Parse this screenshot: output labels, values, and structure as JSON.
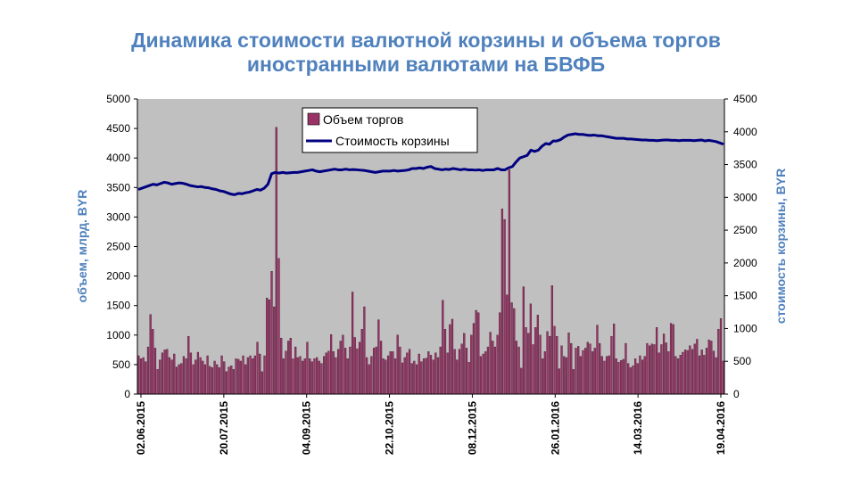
{
  "chart_data": {
    "type": "bar+line",
    "title": "Динамика стоимости валютной корзины и объема торгов иностранными валютами на БВФБ",
    "title_lines": [
      "Динамика стоимости валютной корзины и объема торгов",
      "иностранными валютами на БВФБ"
    ],
    "ylabel_left": "объем, млрд. BYR",
    "ylabel_right": "стоимость корзины, BYR",
    "ylim_left": [
      0,
      5000
    ],
    "ylim_right": [
      0,
      4500
    ],
    "yticks_left": [
      0,
      500,
      1000,
      1500,
      2000,
      2500,
      3000,
      3500,
      4000,
      4500,
      5000
    ],
    "yticks_right": [
      0,
      500,
      1000,
      1500,
      2000,
      2500,
      3000,
      3500,
      4000,
      4500
    ],
    "x_tick_labels": [
      "02.06.2015",
      "20.07.2015",
      "04.09.2015",
      "22.10.2015",
      "08.12.2015",
      "26.01.2016",
      "14.03.2016",
      "19.04.2016"
    ],
    "grid": false,
    "background": "#c0c0c0",
    "legend_position": "top-center",
    "series": [
      {
        "name": "Объем торгов",
        "type": "bar",
        "axis": "left",
        "color": "#993366",
        "values": [
          650,
          600,
          620,
          550,
          800,
          1350,
          1100,
          780,
          420,
          580,
          700,
          750,
          760,
          620,
          580,
          680,
          460,
          500,
          520,
          640,
          600,
          980,
          700,
          500,
          580,
          710,
          620,
          560,
          500,
          650,
          470,
          450,
          560,
          500,
          450,
          650,
          550,
          380,
          460,
          480,
          420,
          600,
          590,
          560,
          650,
          500,
          620,
          650,
          600,
          650,
          880,
          680,
          380,
          650,
          1630,
          1600,
          2080,
          1480,
          4520,
          2300,
          950,
          600,
          730,
          900,
          950,
          600,
          800,
          620,
          640,
          560,
          600,
          880,
          600,
          550,
          600,
          620,
          560,
          520,
          640,
          700,
          730,
          1010,
          720,
          620,
          760,
          900,
          1000,
          780,
          600,
          800,
          1730,
          960,
          770,
          880,
          1100,
          1480,
          620,
          500,
          640,
          780,
          800,
          1260,
          900,
          600,
          580,
          650,
          720,
          720,
          600,
          1000,
          800,
          530,
          620,
          700,
          760,
          520,
          560,
          500,
          680,
          550,
          600,
          610,
          720,
          660,
          580,
          700,
          620,
          800,
          1590,
          1100,
          700,
          1180,
          1270,
          760,
          580,
          760,
          850,
          1030,
          780,
          540,
          1000,
          1200,
          1420,
          1380,
          640,
          680,
          720,
          800,
          1050,
          900,
          800,
          1000,
          1380,
          3140,
          2960,
          1680,
          3800,
          1550,
          1450,
          900,
          800,
          440,
          1820,
          1130,
          1030,
          1530,
          840,
          1130,
          1340,
          1000,
          600,
          720,
          1060,
          980,
          1840,
          1150,
          980,
          430,
          820,
          640,
          620,
          1040,
          860,
          420,
          780,
          810,
          640,
          740,
          780,
          880,
          850,
          720,
          780,
          1170,
          860,
          640,
          560,
          640,
          650,
          980,
          1190,
          600,
          540,
          570,
          590,
          860,
          520,
          450,
          480,
          600,
          520,
          650,
          580,
          640,
          860,
          820,
          850,
          840,
          1130,
          700,
          840,
          1020,
          870,
          720,
          1200,
          1180,
          640,
          600,
          660,
          710,
          750,
          740,
          820,
          760,
          850,
          930,
          650,
          750,
          660,
          780,
          920,
          900,
          730,
          620,
          1100,
          1280,
          560
        ]
      },
      {
        "name": "Стоимость корзины",
        "type": "line",
        "axis": "right",
        "color": "#000080",
        "values": [
          3120,
          3140,
          3160,
          3180,
          3200,
          3190,
          3210,
          3230,
          3220,
          3200,
          3210,
          3220,
          3215,
          3200,
          3180,
          3170,
          3160,
          3165,
          3150,
          3145,
          3130,
          3120,
          3100,
          3090,
          3070,
          3050,
          3040,
          3060,
          3055,
          3070,
          3080,
          3100,
          3120,
          3110,
          3140,
          3200,
          3360,
          3380,
          3370,
          3380,
          3370,
          3375,
          3380,
          3380,
          3390,
          3400,
          3410,
          3420,
          3400,
          3390,
          3400,
          3410,
          3420,
          3430,
          3420,
          3420,
          3430,
          3420,
          3425,
          3420,
          3415,
          3410,
          3400,
          3390,
          3380,
          3390,
          3400,
          3400,
          3400,
          3410,
          3400,
          3405,
          3410,
          3420,
          3440,
          3440,
          3450,
          3440,
          3460,
          3470,
          3440,
          3430,
          3420,
          3430,
          3425,
          3440,
          3430,
          3420,
          3430,
          3420,
          3420,
          3415,
          3420,
          3410,
          3420,
          3420,
          3420,
          3440,
          3420,
          3420,
          3450,
          3470,
          3540,
          3600,
          3620,
          3640,
          3720,
          3700,
          3720,
          3780,
          3820,
          3810,
          3860,
          3860,
          3880,
          3920,
          3950,
          3960,
          3970,
          3960,
          3960,
          3950,
          3945,
          3950,
          3940,
          3940,
          3930,
          3920,
          3910,
          3900,
          3900,
          3900,
          3890,
          3890,
          3885,
          3880,
          3875,
          3875,
          3870,
          3870,
          3865,
          3870,
          3875,
          3875,
          3870,
          3870,
          3865,
          3870,
          3870,
          3870,
          3865,
          3870,
          3875,
          3860,
          3870,
          3860,
          3850,
          3830,
          3810
        ]
      }
    ]
  }
}
